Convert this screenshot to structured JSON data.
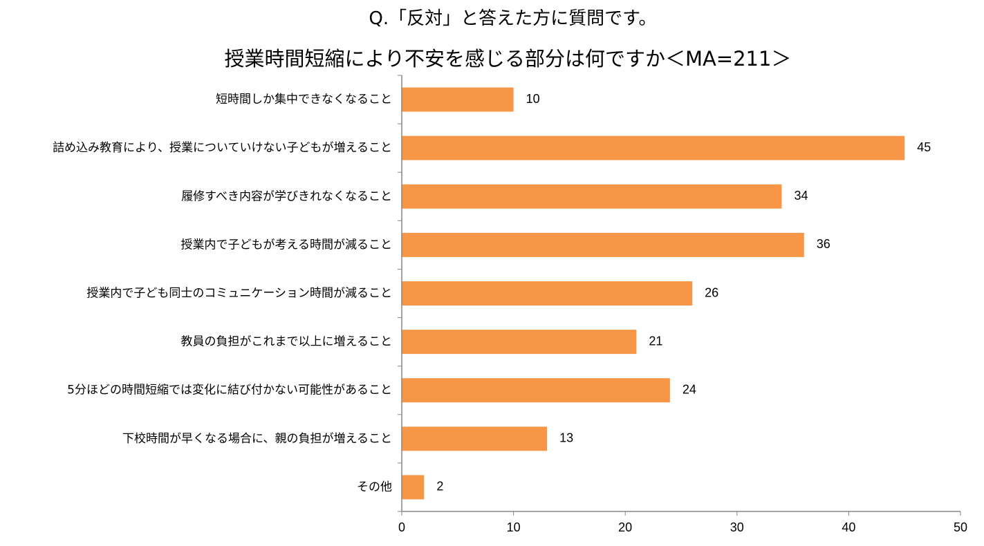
{
  "title": "Q.「反対」と答えた方に質問です。",
  "subtitle": "授業時間短縮により不安を感じる部分は何ですか＜MA=211＞",
  "chart_data": {
    "type": "bar",
    "orientation": "horizontal",
    "title": "Q.「反対」と答えた方に質問です。",
    "subtitle": "授業時間短縮により不安を感じる部分は何ですか＜MA=211＞",
    "categories": [
      "短時間しか集中できなくなること",
      "詰め込み教育により、授業についていけない子どもが増えること",
      "履修すべき内容が学びきれなくなること",
      "授業内で子どもが考える時間が減ること",
      "授業内で子ども同士のコミュニケーション時間が減ること",
      "教員の負担がこれまで以上に増えること",
      "5分ほどの時間短縮では変化に結び付かない可能性があること",
      "下校時間が早くなる場合に、親の負担が増えること",
      "その他"
    ],
    "values": [
      10,
      45,
      34,
      36,
      26,
      21,
      24,
      13,
      2
    ],
    "xlim": [
      0,
      50
    ],
    "xticks": [
      0,
      10,
      20,
      30,
      40,
      50
    ],
    "bar_color": "#F79646",
    "grid": false,
    "data_labels": true
  }
}
